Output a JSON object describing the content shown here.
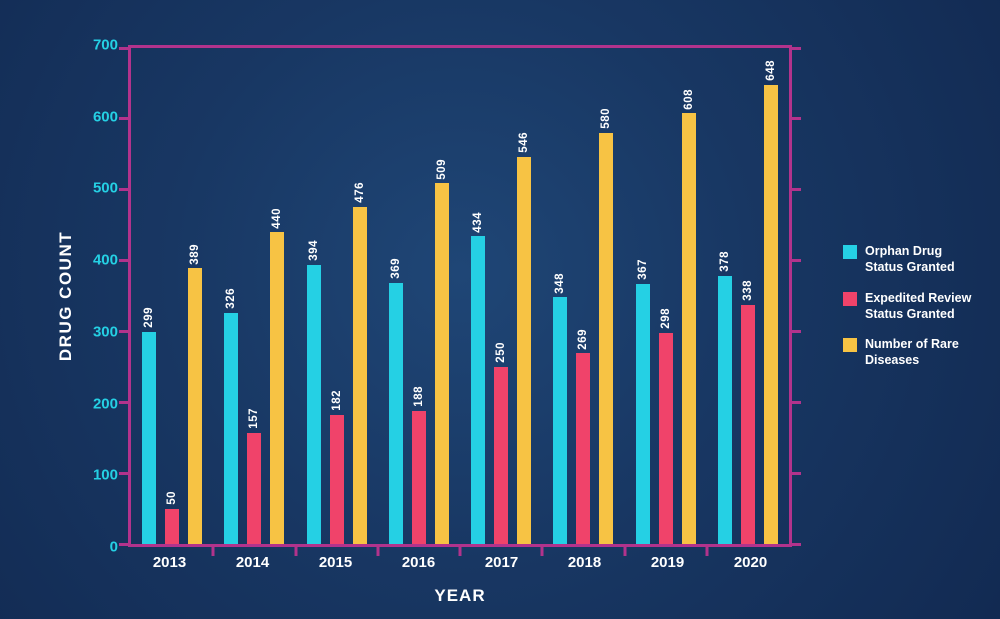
{
  "chart_data": {
    "type": "bar",
    "categories": [
      "2013",
      "2014",
      "2015",
      "2016",
      "2017",
      "2018",
      "2019",
      "2020"
    ],
    "series": [
      {
        "name": "Orphan Drug Status Granted",
        "color": "#25d0e4",
        "values": [
          299,
          326,
          394,
          369,
          434,
          348,
          367,
          378
        ]
      },
      {
        "name": "Expedited Review Status Granted",
        "color": "#f0436a",
        "values": [
          50,
          157,
          182,
          188,
          250,
          269,
          298,
          338
        ]
      },
      {
        "name": "Number of Rare Diseases",
        "color": "#f7c344",
        "values": [
          389,
          440,
          476,
          509,
          546,
          580,
          608,
          648
        ]
      }
    ],
    "title": "",
    "xlabel": "YEAR",
    "ylabel": "DRUG COUNT",
    "ylim": [
      0,
      700
    ],
    "ytick_step": 100,
    "grid": false,
    "legend_position": "right",
    "bar_label_orientation": "vertical"
  },
  "legend": {
    "items": [
      {
        "label_lines": [
          "Orphan Drug",
          "Status Granted"
        ],
        "color": "#25d0e4"
      },
      {
        "label_lines": [
          "Expedited Review",
          "Status Granted"
        ],
        "color": "#f0436a"
      },
      {
        "label_lines": [
          "Number of Rare",
          "Diseases"
        ],
        "color": "#f7c344"
      }
    ]
  },
  "colors": {
    "axis_border": "#b2338c",
    "y_tick_label": "#25d0e4",
    "x_tick_label": "#ffffff",
    "bar_value_label": "#ffffff",
    "background_center": "#1f4676",
    "background_edge": "#122a52"
  }
}
